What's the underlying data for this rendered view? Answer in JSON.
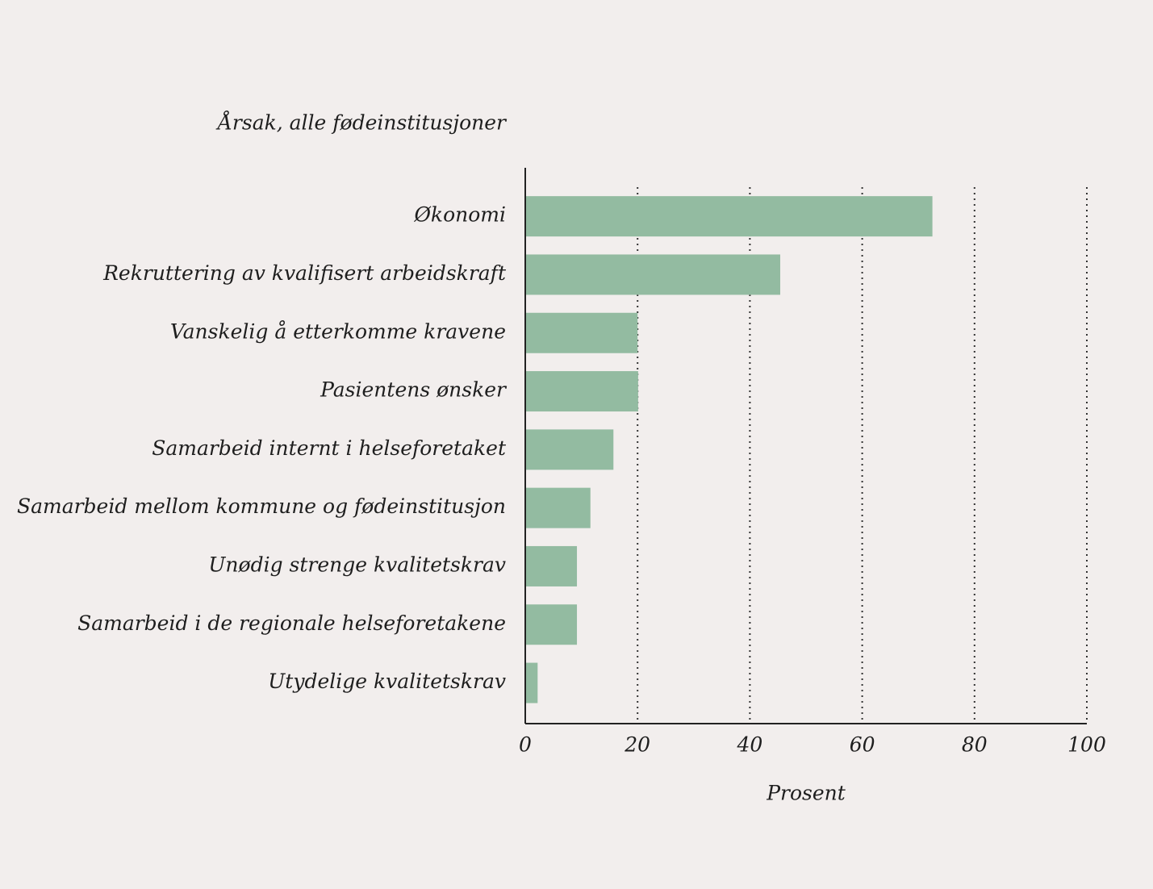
{
  "chart_data": {
    "type": "hbar",
    "y_label": "Årsak, alle fødeinstitusjoner",
    "x_label": "Prosent",
    "categories": [
      "Økonomi",
      "Rekruttering av kvalifisert arbeidskraft",
      "Vanskelig å etterkomme kravene",
      "Pasientens ønsker",
      "Samarbeid internt i helseforetaket",
      "Samarbeid mellom kommune og fødeinstitusjon",
      "Unødig strenge kvalitetskrav",
      "Samarbeid i de regionale helseforetakene",
      "Utydelige kvalitetskrav"
    ],
    "values": [
      72.5,
      45.4,
      20,
      20.1,
      15.7,
      11.6,
      9.2,
      9.2,
      2.2
    ],
    "color": "#93bba1",
    "xlim": [
      0,
      100
    ],
    "xticks": [
      0,
      20,
      40,
      60,
      80,
      100
    ],
    "grid": true
  }
}
